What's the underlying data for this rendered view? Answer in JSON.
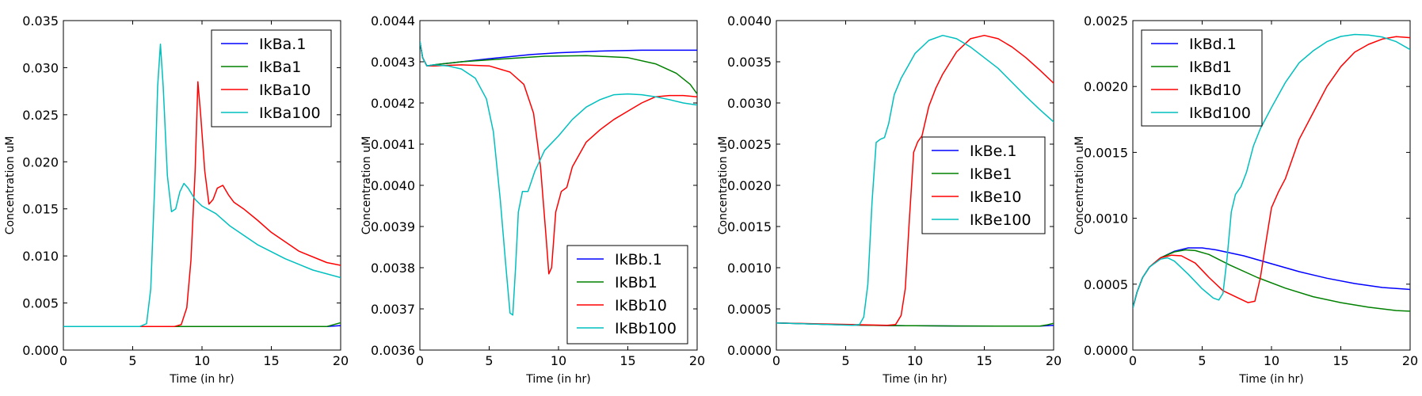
{
  "colors": {
    "blue": "#0000ff",
    "green": "#008000",
    "red": "#ff0000",
    "cyan": "#00bfbf",
    "axes": "#000000",
    "background": "#ffffff"
  },
  "chart_data": [
    {
      "type": "line",
      "title": "",
      "xlabel": "Time (in hr)",
      "ylabel": "Concentration uM",
      "xlim": [
        0,
        20
      ],
      "ylim": [
        0,
        0.035
      ],
      "xticks": [
        "0",
        "5",
        "10",
        "15",
        "20"
      ],
      "yticks": [
        "0.000",
        "0.005",
        "0.010",
        "0.015",
        "0.020",
        "0.025",
        "0.030",
        "0.035"
      ],
      "grid": false,
      "legend_position": "upper-right",
      "series": [
        {
          "name": "IkBa.1",
          "color": "#0000ff",
          "x": [
            0,
            5,
            10,
            15,
            19,
            20
          ],
          "y": [
            0.0025,
            0.0025,
            0.0025,
            0.0025,
            0.0025,
            0.0026
          ]
        },
        {
          "name": "IkBa1",
          "color": "#008000",
          "x": [
            0,
            5,
            10,
            15,
            19,
            20
          ],
          "y": [
            0.0025,
            0.0025,
            0.0025,
            0.0025,
            0.0025,
            0.0029
          ]
        },
        {
          "name": "IkBa10",
          "color": "#ff0000",
          "x": [
            0,
            8,
            8.5,
            8.9,
            9.2,
            9.5,
            9.7,
            9.9,
            10.2,
            10.5,
            10.8,
            11.1,
            11.5,
            11.9,
            12.3,
            13,
            14,
            15,
            17,
            19,
            20
          ],
          "y": [
            0.0025,
            0.0025,
            0.0027,
            0.0045,
            0.0095,
            0.019,
            0.0285,
            0.025,
            0.019,
            0.0155,
            0.016,
            0.0172,
            0.0175,
            0.0165,
            0.0157,
            0.015,
            0.0138,
            0.0125,
            0.0105,
            0.0093,
            0.009
          ]
        },
        {
          "name": "IkBa100",
          "color": "#00bfbf",
          "x": [
            0,
            5.5,
            6,
            6.3,
            6.6,
            6.8,
            7,
            7.2,
            7.5,
            7.8,
            8.1,
            8.4,
            8.7,
            9,
            9.5,
            10,
            11,
            12,
            14,
            16,
            18,
            20
          ],
          "y": [
            0.0025,
            0.0025,
            0.0028,
            0.0065,
            0.018,
            0.028,
            0.0325,
            0.028,
            0.0185,
            0.0147,
            0.015,
            0.0168,
            0.0177,
            0.0172,
            0.016,
            0.0153,
            0.0145,
            0.0132,
            0.0112,
            0.0097,
            0.0085,
            0.0077
          ]
        }
      ]
    },
    {
      "type": "line",
      "title": "",
      "xlabel": "Time (in hr)",
      "ylabel": "Concentration uM",
      "xlim": [
        0,
        20
      ],
      "ylim": [
        0.0036,
        0.0044
      ],
      "xticks": [
        "0",
        "5",
        "10",
        "15",
        "20"
      ],
      "yticks": [
        "0.0036",
        "0.0037",
        "0.0038",
        "0.0039",
        "0.0040",
        "0.0041",
        "0.0042",
        "0.0043",
        "0.0044"
      ],
      "grid": false,
      "legend_position": "lower-right",
      "series": [
        {
          "name": "IkBb.1",
          "color": "#0000ff",
          "x": [
            0,
            0.2,
            0.5,
            1,
            3,
            5,
            8,
            10,
            13,
            16,
            20
          ],
          "y": [
            0.00435,
            0.00431,
            0.00429,
            0.0042925,
            0.0043,
            0.0043075,
            0.0043175,
            0.004322,
            0.004326,
            0.004328,
            0.004328
          ]
        },
        {
          "name": "IkBb1",
          "color": "#008000",
          "x": [
            0,
            0.2,
            0.5,
            1,
            3,
            6,
            9,
            12,
            15,
            17,
            18.5,
            19.5,
            20
          ],
          "y": [
            0.00435,
            0.00431,
            0.00429,
            0.0042925,
            0.0043,
            0.004307,
            0.0043135,
            0.004315,
            0.00431,
            0.004295,
            0.004272,
            0.004245,
            0.004222
          ]
        },
        {
          "name": "IkBb10",
          "color": "#ff0000",
          "x": [
            0,
            0.2,
            0.5,
            1,
            3,
            5,
            6.5,
            7.5,
            8.2,
            8.7,
            9.1,
            9.3,
            9.5,
            9.8,
            10.2,
            10.6,
            11,
            12,
            13,
            14,
            15,
            16,
            17,
            18,
            19,
            20
          ],
          "y": [
            0.00435,
            0.00431,
            0.00429,
            0.00429,
            0.0042925,
            0.00429,
            0.004275,
            0.004245,
            0.004175,
            0.004045,
            0.003875,
            0.003785,
            0.0038,
            0.003935,
            0.003985,
            0.003995,
            0.004045,
            0.004105,
            0.004135,
            0.00416,
            0.00418,
            0.0042,
            0.004215,
            0.004218,
            0.004218,
            0.004215
          ]
        },
        {
          "name": "IkBb100",
          "color": "#00bfbf",
          "x": [
            0,
            0.2,
            0.5,
            1,
            2,
            3,
            4,
            4.8,
            5.3,
            5.8,
            6.2,
            6.5,
            6.7,
            6.9,
            7.1,
            7.4,
            7.8,
            8.3,
            9,
            10,
            11,
            12,
            13,
            14,
            15,
            16,
            17,
            18,
            19,
            20
          ],
          "y": [
            0.00435,
            0.00431,
            0.00429,
            0.0042925,
            0.00429,
            0.0042825,
            0.00426,
            0.00421,
            0.00413,
            0.003965,
            0.003805,
            0.00369,
            0.003685,
            0.0038,
            0.003935,
            0.003985,
            0.003985,
            0.004035,
            0.004085,
            0.00412,
            0.00416,
            0.00419,
            0.004208,
            0.00422,
            0.004222,
            0.00422,
            0.004215,
            0.004208,
            0.0042,
            0.004195
          ]
        }
      ]
    },
    {
      "type": "line",
      "title": "",
      "xlabel": "Time (in hr)",
      "ylabel": "Concentration uM",
      "xlim": [
        0,
        20
      ],
      "ylim": [
        0,
        0.004
      ],
      "xticks": [
        "0",
        "5",
        "10",
        "15",
        "20"
      ],
      "yticks": [
        "0.0000",
        "0.0005",
        "0.0010",
        "0.0015",
        "0.0020",
        "0.0025",
        "0.0030",
        "0.0035",
        "0.0040"
      ],
      "grid": false,
      "legend_position": "center-right",
      "series": [
        {
          "name": "IkBe.1",
          "color": "#0000ff",
          "x": [
            0,
            2,
            4,
            6,
            8,
            10,
            13,
            16,
            19,
            19.5,
            20
          ],
          "y": [
            0.00033,
            0.00032,
            0.00031,
            0.000303,
            0.000298,
            0.000295,
            0.000292,
            0.00029,
            0.00029,
            0.000295,
            0.0003
          ]
        },
        {
          "name": "IkBe1",
          "color": "#008000",
          "x": [
            0,
            2,
            4,
            6,
            8,
            10,
            13,
            16,
            19,
            19.5,
            20
          ],
          "y": [
            0.00033,
            0.00032,
            0.00031,
            0.000303,
            0.000298,
            0.000295,
            0.000292,
            0.00029,
            0.00029,
            0.000305,
            0.000325
          ]
        },
        {
          "name": "IkBe10",
          "color": "#ff0000",
          "x": [
            0,
            8,
            8.6,
            9,
            9.3,
            9.6,
            9.9,
            10.2,
            10.5,
            11,
            11.5,
            12,
            13,
            14,
            15,
            16,
            17,
            18,
            19,
            20
          ],
          "y": [
            0.00033,
            0.0003,
            0.00031,
            0.00042,
            0.00075,
            0.0016,
            0.0024,
            0.00253,
            0.0026,
            0.00296,
            0.00318,
            0.00335,
            0.00362,
            0.00378,
            0.00382,
            0.00378,
            0.00368,
            0.00355,
            0.0034,
            0.00324
          ]
        },
        {
          "name": "IkBe100",
          "color": "#00bfbf",
          "x": [
            0,
            5.5,
            6,
            6.3,
            6.6,
            6.9,
            7.2,
            7.5,
            7.8,
            8.1,
            8.5,
            9,
            9.5,
            10,
            11,
            12,
            13,
            14,
            15,
            16,
            17,
            18,
            19,
            20
          ],
          "y": [
            0.00033,
            0.0003,
            0.00031,
            0.0004,
            0.0008,
            0.0018,
            0.00252,
            0.00256,
            0.00258,
            0.00275,
            0.0031,
            0.0033,
            0.00345,
            0.0036,
            0.00376,
            0.00382,
            0.00378,
            0.00368,
            0.00355,
            0.00342,
            0.00325,
            0.00308,
            0.00292,
            0.00277
          ]
        }
      ]
    },
    {
      "type": "line",
      "title": "",
      "xlabel": "Time (in hr)",
      "ylabel": "Concentration uM",
      "xlim": [
        0,
        20
      ],
      "ylim": [
        0,
        0.0025
      ],
      "xticks": [
        "0",
        "5",
        "10",
        "15",
        "20"
      ],
      "yticks": [
        "0.0000",
        "0.0005",
        "0.0010",
        "0.0015",
        "0.0020",
        "0.0025"
      ],
      "grid": false,
      "legend_position": "upper-left",
      "series": [
        {
          "name": "IkBd.1",
          "color": "#0000ff",
          "x": [
            0,
            0.3,
            0.7,
            1.2,
            2,
            3,
            4,
            5,
            6,
            8,
            10,
            12,
            14,
            16,
            18,
            20
          ],
          "y": [
            0.00032,
            0.00044,
            0.00055,
            0.00063,
            0.0007,
            0.00075,
            0.000775,
            0.000775,
            0.00076,
            0.000715,
            0.000655,
            0.000595,
            0.000545,
            0.000505,
            0.000475,
            0.00046
          ]
        },
        {
          "name": "IkBd1",
          "color": "#008000",
          "x": [
            0,
            0.3,
            0.7,
            1.2,
            2,
            3,
            3.8,
            4.5,
            5.5,
            7,
            9,
            11,
            13,
            15,
            17,
            19,
            20
          ],
          "y": [
            0.00032,
            0.00044,
            0.00055,
            0.00063,
            0.0007,
            0.000745,
            0.00076,
            0.000755,
            0.000725,
            0.000645,
            0.00055,
            0.00047,
            0.000405,
            0.00036,
            0.000325,
            0.0003,
            0.000295
          ]
        },
        {
          "name": "IkBd10",
          "color": "#ff0000",
          "x": [
            0,
            0.3,
            0.7,
            1.2,
            2,
            2.8,
            3.5,
            4.5,
            5.5,
            6.5,
            7.5,
            8.3,
            8.8,
            9.2,
            9.6,
            10,
            10.5,
            11,
            12,
            13,
            14,
            15,
            16,
            17,
            18,
            19,
            20
          ],
          "y": [
            0.00032,
            0.00044,
            0.00055,
            0.00063,
            0.0007,
            0.00072,
            0.000715,
            0.00066,
            0.00055,
            0.00045,
            0.0004,
            0.00036,
            0.00037,
            0.00055,
            0.00082,
            0.00108,
            0.0012,
            0.0013,
            0.0016,
            0.0018,
            0.002,
            0.00215,
            0.00226,
            0.00232,
            0.00236,
            0.002378,
            0.00237
          ]
        },
        {
          "name": "IkBd100",
          "color": "#00bfbf",
          "x": [
            0,
            0.3,
            0.7,
            1.2,
            2,
            2.5,
            3,
            4,
            5,
            5.8,
            6.2,
            6.5,
            6.8,
            7.1,
            7.4,
            7.8,
            8.2,
            8.7,
            9.2,
            10,
            11,
            12,
            13,
            14,
            15,
            16,
            17,
            18,
            19,
            20
          ],
          "y": [
            0.00032,
            0.00044,
            0.00055,
            0.00063,
            0.00069,
            0.0007,
            0.000675,
            0.000575,
            0.000465,
            0.000395,
            0.00038,
            0.00043,
            0.0007,
            0.00105,
            0.00118,
            0.00124,
            0.00135,
            0.00155,
            0.00168,
            0.00184,
            0.00203,
            0.00218,
            0.00227,
            0.00234,
            0.00238,
            0.002395,
            0.00239,
            0.002375,
            0.00234,
            0.00228
          ]
        }
      ]
    }
  ]
}
